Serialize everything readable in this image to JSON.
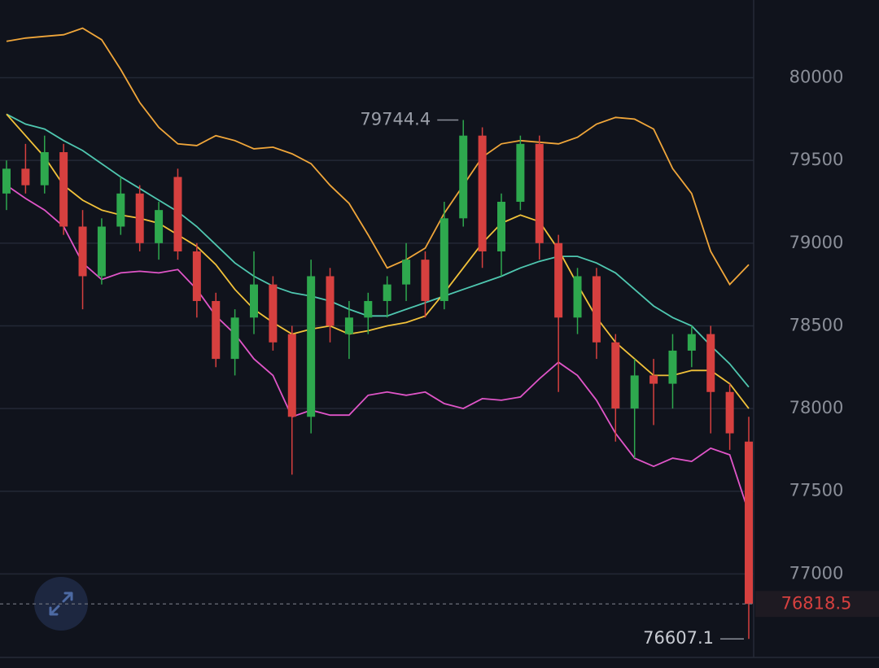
{
  "chart_data": {
    "type": "candlestick",
    "categories": [
      null,
      null,
      null,
      null,
      null,
      null,
      null,
      null,
      null,
      null,
      null,
      null,
      null,
      null,
      null,
      null,
      null,
      null,
      null,
      null,
      null,
      null,
      null,
      null,
      null,
      null,
      null,
      null,
      null,
      null,
      null,
      null,
      null,
      null,
      null,
      null,
      null,
      null,
      null,
      null
    ],
    "open": [
      79300,
      79450,
      79350,
      79550,
      79100,
      78800,
      79100,
      79300,
      79000,
      79400,
      78950,
      78650,
      78300,
      78550,
      78750,
      78450,
      77950,
      78800,
      78450,
      78550,
      78650,
      78750,
      78900,
      78650,
      79150,
      79650,
      78950,
      79250,
      79600,
      79000,
      78550,
      78800,
      78400,
      78000,
      78200,
      78150,
      78350,
      78450,
      78100,
      77800
    ],
    "high": [
      79500,
      79600,
      79650,
      79600,
      79200,
      79150,
      79400,
      79350,
      79250,
      79450,
      79000,
      78700,
      78600,
      78950,
      78800,
      78500,
      78900,
      78850,
      78650,
      78700,
      78800,
      79000,
      78950,
      79250,
      79744.4,
      79700,
      79300,
      79650,
      79650,
      79050,
      78850,
      78850,
      78450,
      78300,
      78300,
      78450,
      78500,
      78500,
      78150,
      77950
    ],
    "low": [
      79200,
      79300,
      79300,
      79050,
      78600,
      78750,
      79050,
      78950,
      78900,
      78900,
      78550,
      78250,
      78200,
      78450,
      78350,
      77600,
      77850,
      78400,
      78300,
      78450,
      78550,
      78650,
      78550,
      78600,
      79100,
      78850,
      78800,
      79200,
      78900,
      78100,
      78450,
      78300,
      77800,
      77700,
      77900,
      78000,
      78250,
      77850,
      77750,
      76607.1
    ],
    "close": [
      79450,
      79350,
      79550,
      79100,
      78800,
      79100,
      79300,
      79000,
      79200,
      78950,
      78650,
      78300,
      78550,
      78750,
      78400,
      77950,
      78800,
      78500,
      78550,
      78650,
      78750,
      78900,
      78650,
      79150,
      79650,
      78950,
      79250,
      79600,
      79000,
      78550,
      78800,
      78400,
      78000,
      78200,
      78150,
      78350,
      78450,
      78100,
      77850,
      76818.5
    ],
    "up_color": "#2ea84e",
    "down_color": "#d6403f",
    "lines": [
      {
        "color": "#f0a63a",
        "values": [
          80220,
          80240,
          80250,
          80260,
          80300,
          80230,
          80050,
          79850,
          79700,
          79600,
          79590,
          79650,
          79620,
          79570,
          79580,
          79540,
          79480,
          79350,
          79240,
          79050,
          78850,
          78900,
          78970,
          79180,
          79350,
          79520,
          79600,
          79620,
          79610,
          79600,
          79640,
          79720,
          79760,
          79750,
          79690,
          79450,
          79300,
          78950,
          78750,
          78870
        ]
      },
      {
        "color": "#4fc7b0",
        "values": [
          79780,
          79720,
          79690,
          79620,
          79560,
          79480,
          79400,
          79330,
          79260,
          79190,
          79100,
          78990,
          78880,
          78800,
          78740,
          78700,
          78680,
          78650,
          78600,
          78560,
          78560,
          78600,
          78640,
          78680,
          78720,
          78760,
          78800,
          78850,
          78890,
          78920,
          78920,
          78880,
          78820,
          78720,
          78620,
          78550,
          78500,
          78380,
          78270,
          78130
        ]
      },
      {
        "color": "#f2c23a",
        "values": [
          79780,
          79650,
          79520,
          79350,
          79260,
          79200,
          79170,
          79150,
          79120,
          79050,
          78980,
          78870,
          78720,
          78600,
          78520,
          78450,
          78480,
          78500,
          78450,
          78470,
          78500,
          78520,
          78560,
          78700,
          78850,
          79000,
          79120,
          79170,
          79130,
          78960,
          78750,
          78550,
          78400,
          78300,
          78200,
          78200,
          78230,
          78230,
          78150,
          78000
        ]
      },
      {
        "color": "#e055c8",
        "values": [
          79350,
          79270,
          79200,
          79100,
          78880,
          78780,
          78820,
          78830,
          78820,
          78840,
          78720,
          78560,
          78450,
          78300,
          78200,
          77950,
          77990,
          77960,
          77960,
          78080,
          78100,
          78080,
          78100,
          78030,
          78000,
          78060,
          78050,
          78070,
          78180,
          78280,
          78200,
          78050,
          77850,
          77700,
          77650,
          77700,
          77680,
          77760,
          77720,
          77370
        ]
      }
    ],
    "ylim": [
      76500,
      80470
    ],
    "yticks": [
      77000,
      77500,
      78000,
      78500,
      79000,
      79500,
      80000
    ],
    "grid": true
  }
}
